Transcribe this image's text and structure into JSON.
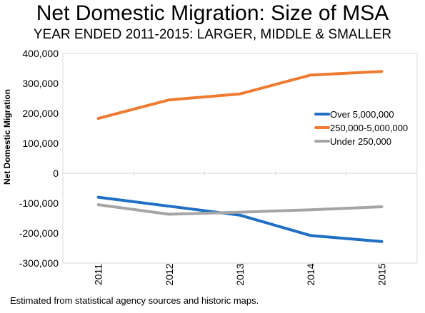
{
  "chart_data": {
    "type": "line",
    "title": "Net Domestic Migration: Size of MSA",
    "subtitle": "YEAR ENDED 2011-2015: LARGER, MIDDLE & SMALLER",
    "ylabel": "Net Domestic Migration",
    "xlabel": "",
    "categories": [
      "2011",
      "2012",
      "2013",
      "2014",
      "2015"
    ],
    "ylim": [
      -300000,
      400000
    ],
    "yticks": [
      400000,
      300000,
      200000,
      100000,
      0,
      -100000,
      -200000,
      -300000
    ],
    "ytick_labels": [
      "400,000",
      "300,000",
      "200,000",
      "100,000",
      "0",
      "-100,000",
      "-200,000",
      "-300,000"
    ],
    "series": [
      {
        "name": "Over 5,000,000",
        "color": "#1f6fc4",
        "values": [
          -80000,
          -110000,
          -140000,
          -208000,
          -228000
        ]
      },
      {
        "name": "250,000-5,000,000",
        "color": "#ee7b30",
        "values": [
          183000,
          245000,
          265000,
          328000,
          340000
        ]
      },
      {
        "name": "Under 250,000",
        "color": "#a5a5a5",
        "values": [
          -105000,
          -137000,
          -130000,
          -122000,
          -112000
        ]
      }
    ],
    "legend_position": "right",
    "grid": false
  },
  "footnote": "Estimated from statistical agency sources and historic maps."
}
